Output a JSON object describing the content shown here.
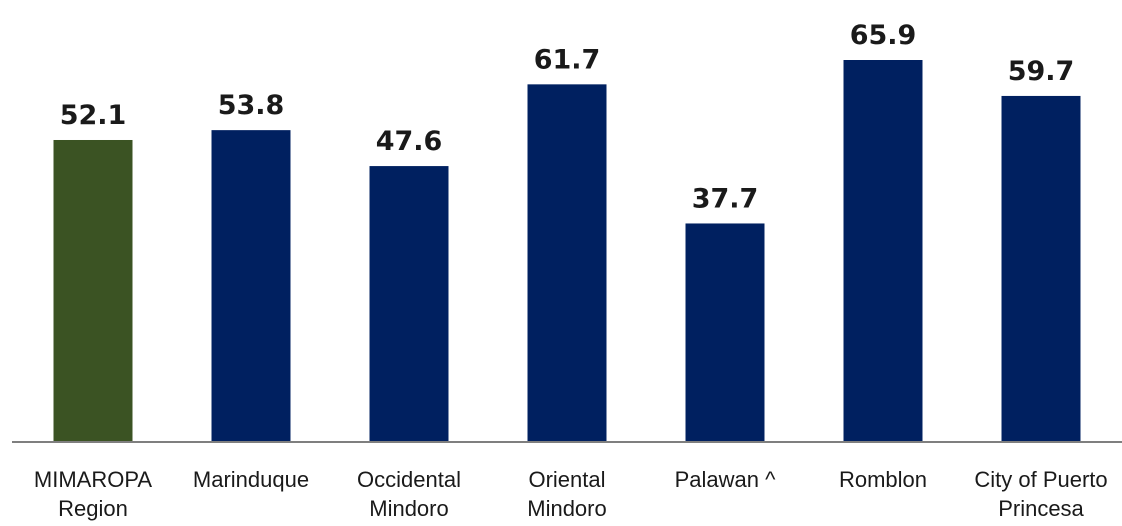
{
  "chart_data": {
    "type": "bar",
    "title": "",
    "xlabel": "",
    "ylabel": "",
    "ylim": [
      0,
      66
    ],
    "grid": false,
    "categories": [
      [
        "MIMAROPA",
        "Region"
      ],
      [
        "Marinduque"
      ],
      [
        "Occidental",
        "Mindoro"
      ],
      [
        "Oriental",
        "Mindoro"
      ],
      [
        "Palawan ^"
      ],
      [
        "Romblon"
      ],
      [
        "City of Puerto",
        "Princesa"
      ]
    ],
    "values": [
      52.1,
      53.8,
      47.6,
      61.7,
      37.7,
      65.9,
      59.7
    ],
    "value_labels": [
      "52.1",
      "53.8",
      "47.6",
      "61.7",
      "37.7",
      "65.9",
      "59.7"
    ],
    "bar_colors": [
      "#3b5323",
      "#002060",
      "#002060",
      "#002060",
      "#002060",
      "#002060",
      "#002060"
    ],
    "axis_color": "#7f7f7f"
  }
}
